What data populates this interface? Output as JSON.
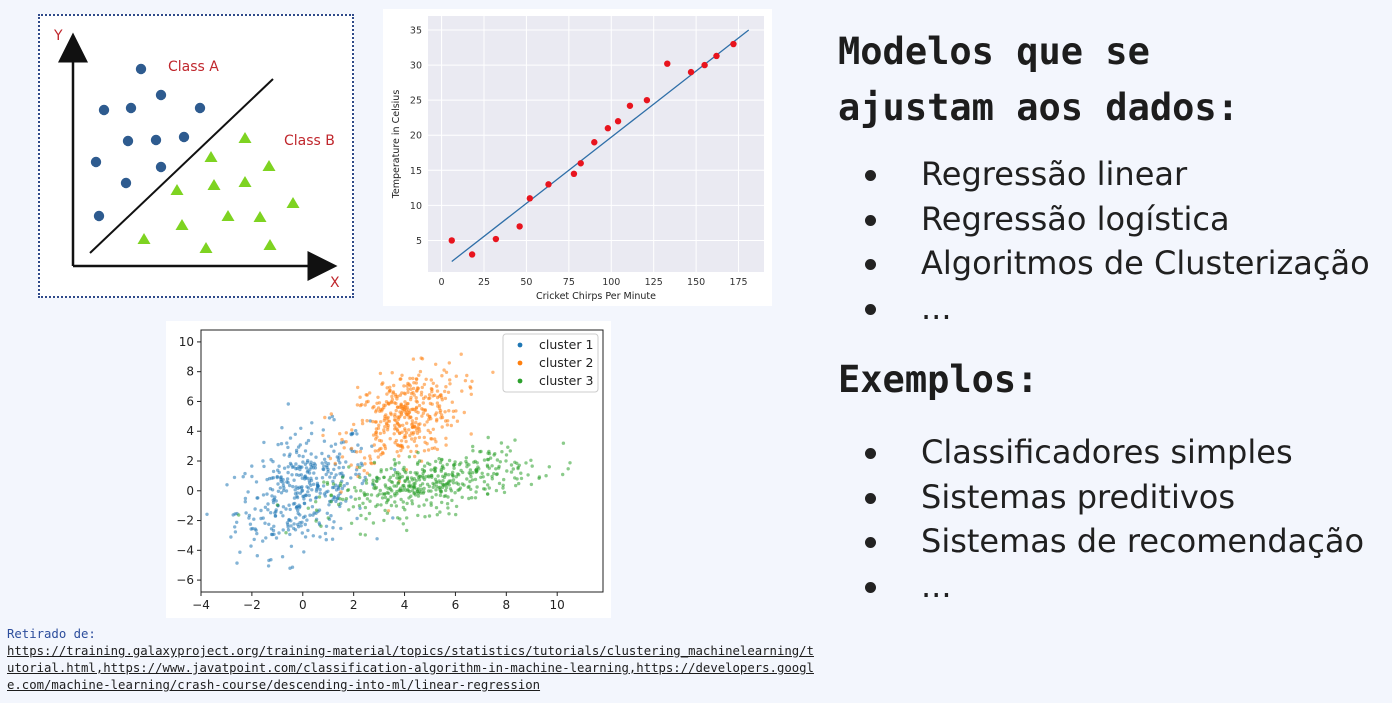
{
  "figure_classification": {
    "y_label": "Y",
    "x_label": "X",
    "class_a": "Class A",
    "class_b": "Class B",
    "colors": {
      "class_a": "#2e5b8f",
      "class_b": "#7ed321",
      "labels": "#c0272d"
    }
  },
  "figure_regression": {
    "chart_data": {
      "type": "scatter",
      "xlabel": "Cricket Chirps Per Minute",
      "ylabel": "Temperature in Celsius",
      "xticks": [
        0,
        25,
        50,
        75,
        100,
        125,
        150,
        175
      ],
      "yticks": [
        5,
        10,
        15,
        20,
        25,
        30,
        35
      ],
      "xlim": [
        -8,
        190
      ],
      "ylim": [
        0.5,
        37
      ],
      "points": [
        [
          6,
          5
        ],
        [
          18,
          3
        ],
        [
          32,
          5.2
        ],
        [
          46,
          7
        ],
        [
          52,
          11
        ],
        [
          63,
          13
        ],
        [
          78,
          14.5
        ],
        [
          82,
          16
        ],
        [
          90,
          19
        ],
        [
          98,
          21
        ],
        [
          104,
          22
        ],
        [
          111,
          24.2
        ],
        [
          121,
          25
        ],
        [
          133,
          30.2
        ],
        [
          147,
          29
        ],
        [
          155,
          30
        ],
        [
          162,
          31.3
        ],
        [
          172,
          33
        ]
      ],
      "fit_line": [
        [
          6,
          2
        ],
        [
          181,
          35
        ]
      ],
      "colors": {
        "points": "#e8141e",
        "line": "#2f6fa8"
      }
    }
  },
  "figure_clusters": {
    "chart_data": {
      "type": "scatter",
      "xticks": [
        -4,
        -2,
        0,
        2,
        4,
        6,
        8,
        10
      ],
      "yticks": [
        -6,
        -4,
        -2,
        0,
        2,
        4,
        6,
        8,
        10
      ],
      "xlim": [
        -4,
        11.8
      ],
      "ylim": [
        -6.8,
        10.8
      ],
      "series": [
        {
          "name": "cluster 1",
          "color": "#1f77b4",
          "center": [
            0,
            0
          ],
          "spread": [
            1.3,
            2.0
          ],
          "count": 400
        },
        {
          "name": "cluster 2",
          "color": "#ff7f0e",
          "center": [
            4,
            5
          ],
          "spread": [
            1.1,
            1.6
          ],
          "count": 400
        },
        {
          "name": "cluster 3",
          "color": "#2ca02c",
          "center": [
            5,
            0.5
          ],
          "spread": [
            2.0,
            1.1
          ],
          "count": 450
        }
      ]
    }
  },
  "heading_models": "Modelos que se\najustam aos dados:",
  "models": [
    "Regressão linear",
    "Regressão logística",
    "Algoritmos de Clusterização",
    "..."
  ],
  "heading_examples": "Exemplos:",
  "examples": [
    "Classificadores simples",
    "Sistemas preditivos",
    "Sistemas de recomendação",
    "..."
  ],
  "source": {
    "label": "Retirado de:",
    "links_text": "https://training.galaxyproject.org/training-material/topics/statistics/tutorials/clustering_machinelearning/tutorial.html,https://www.javatpoint.com/classification-algorithm-in-machine-learning,https://developers.google.com/machine-learning/crash-course/descending-into-ml/linear-regression"
  }
}
